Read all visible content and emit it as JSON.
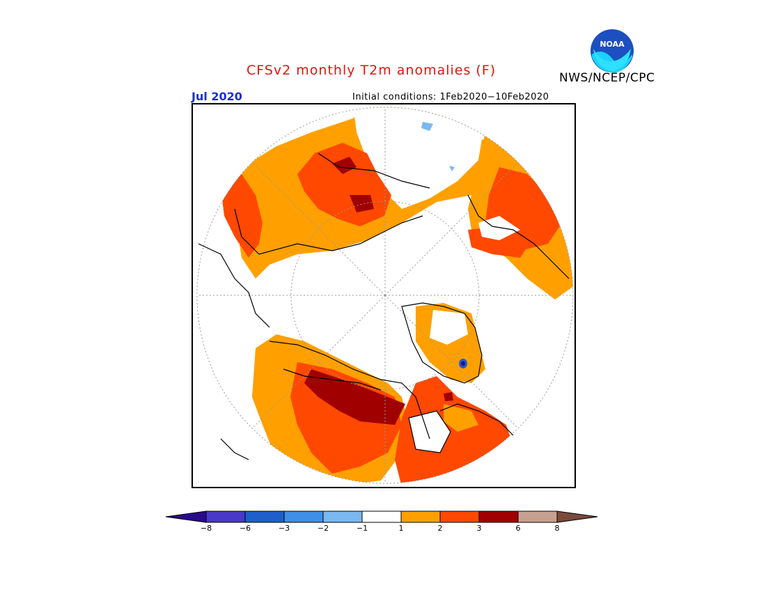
{
  "header": {
    "title": "CFSv2 monthly T2m anomalies (F)",
    "agency": "NWS/NCEP/CPC",
    "month_label": "Jul 2020",
    "initial_conditions": "Initial conditions: 1Feb2020−10Feb2020",
    "logo_text": "NOAA"
  },
  "colorbar": {
    "ticks": [
      "−8",
      "−6",
      "−3",
      "−2",
      "−1",
      "1",
      "2",
      "3",
      "6",
      "8"
    ],
    "colors": {
      "below_neg8": "#2a0a8c",
      "neg8_neg6": "#4a38c8",
      "neg6_neg3": "#1e5fcc",
      "neg3_neg2": "#3f8fe6",
      "neg2_neg1": "#7ab8f0",
      "neg1_1": "#ffffff",
      "1_2": "#ffa000",
      "2_3": "#ff4800",
      "3_6": "#a00000",
      "6_8": "#c8a090",
      "above_8": "#7a4a3a"
    }
  },
  "map": {
    "projection": "polar stereographic (north pole)",
    "colors": {
      "coast": "#000000",
      "grid": "#9a9a9a",
      "orange": "#ffa000",
      "redorange": "#ff4800",
      "darkred": "#a00000",
      "lightblue": "#7ab8f0",
      "blue": "#1e5fcc"
    }
  }
}
